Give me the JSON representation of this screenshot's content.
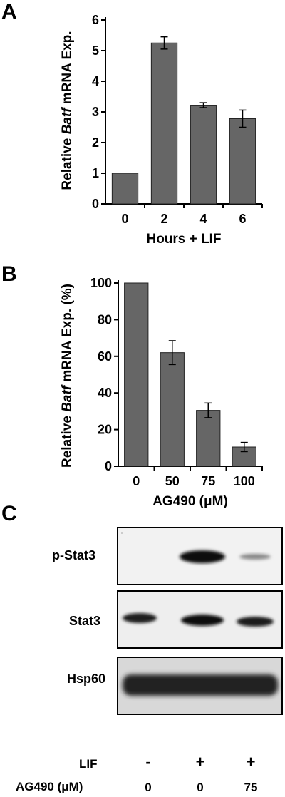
{
  "chart_data": [
    {
      "panel": "A",
      "type": "bar",
      "categories": [
        "0",
        "2",
        "4",
        "6"
      ],
      "values": [
        1.0,
        5.25,
        3.22,
        2.78
      ],
      "errors": [
        0,
        0.2,
        0.08,
        0.28
      ],
      "xlabel": "Hours + LIF",
      "ylabel_prefix": "Relative ",
      "ylabel_italic": "Batf",
      "ylabel_suffix": " mRNA Exp.",
      "ylim": [
        0,
        6
      ],
      "yticks": [
        "0",
        "1",
        "2",
        "3",
        "4",
        "5",
        "6"
      ],
      "bar_color": "#666666"
    },
    {
      "panel": "B",
      "type": "bar",
      "categories": [
        "0",
        "50",
        "75",
        "100"
      ],
      "values": [
        100,
        62,
        30.5,
        10.5
      ],
      "errors": [
        0,
        6.5,
        4,
        2.5
      ],
      "xlabel": "AG490  (μM)",
      "ylabel_prefix": "Relative ",
      "ylabel_italic": "Batf",
      "ylabel_suffix": " mRNA Exp. (%)",
      "ylim": [
        0,
        100
      ],
      "yticks": [
        "0",
        "20",
        "40",
        "60",
        "80",
        "100"
      ],
      "bar_color": "#666666"
    }
  ],
  "panel_c": {
    "letter": "C",
    "blots": [
      {
        "label": "p-Stat3",
        "bands": [
          0.0,
          1.0,
          0.25
        ]
      },
      {
        "label": "Stat3",
        "bands": [
          0.85,
          0.9,
          0.8
        ]
      },
      {
        "label": "Hsp60",
        "bands": [
          1.0,
          1.0,
          1.0
        ]
      }
    ],
    "lif_label": "LIF",
    "lif_values": [
      "-",
      "+",
      "+"
    ],
    "ag490_label": "AG490 (μM)",
    "ag490_values": [
      "0",
      "0",
      "75"
    ]
  }
}
